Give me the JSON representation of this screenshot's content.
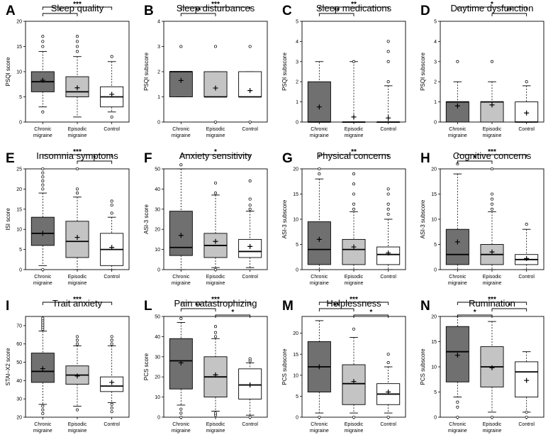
{
  "groups": [
    "Chronic\nmigraine",
    "Episodic\nmigraine",
    "Control"
  ],
  "colors": {
    "chronic": "#707070",
    "episodic": "#c4c4c4",
    "control": "#ffffff"
  },
  "chart_data": [
    {
      "type": "box",
      "letter": "A",
      "title": "Sleep quality",
      "ylabel": "PSQI score",
      "yticks": [
        0,
        5,
        10,
        15,
        20
      ],
      "ylim": [
        0,
        20
      ],
      "boxes": [
        {
          "whislo": 3,
          "q1": 6,
          "med": 8,
          "q3": 10,
          "whishi": 14,
          "mean": 8.3,
          "outliers": [
            2,
            15,
            16,
            17
          ]
        },
        {
          "whislo": 1,
          "q1": 5,
          "med": 6,
          "q3": 9,
          "whishi": 13,
          "mean": 6.8,
          "outliers": [
            14,
            15,
            16,
            17
          ]
        },
        {
          "whislo": 2,
          "q1": 3,
          "med": 5,
          "q3": 7,
          "whishi": 12,
          "mean": 5.5,
          "outliers": [
            1,
            13
          ]
        }
      ],
      "sig": [
        {
          "from": 0,
          "to": 1,
          "label": "*"
        },
        {
          "from": 0,
          "to": 2,
          "label": "***"
        }
      ]
    },
    {
      "type": "box",
      "letter": "B",
      "title": "Sleep disturbances",
      "ylabel": "PSQI subscore",
      "yticks": [
        0,
        1,
        2,
        3,
        4
      ],
      "ylim": [
        0,
        4
      ],
      "boxes": [
        {
          "whislo": 1,
          "q1": 1,
          "med": 2,
          "q3": 2,
          "whishi": 2,
          "mean": 1.65,
          "outliers": [
            3
          ]
        },
        {
          "whislo": 1,
          "q1": 1,
          "med": 1,
          "q3": 2,
          "whishi": 2,
          "mean": 1.35,
          "outliers": [
            0,
            3
          ]
        },
        {
          "whislo": 1,
          "q1": 1,
          "med": 1,
          "q3": 2,
          "whishi": 2,
          "mean": 1.25,
          "outliers": [
            0,
            3
          ]
        }
      ],
      "sig": [
        {
          "from": 0,
          "to": 1,
          "label": "**"
        },
        {
          "from": 0,
          "to": 2,
          "label": "***"
        }
      ]
    },
    {
      "type": "box",
      "letter": "C",
      "title": "Sleep medications",
      "ylabel": "PSQI subscore",
      "yticks": [
        0,
        1,
        2,
        3,
        4,
        5
      ],
      "ylim": [
        0,
        5
      ],
      "boxes": [
        {
          "whislo": 0,
          "q1": 0,
          "med": 0,
          "q3": 2,
          "whishi": 3,
          "mean": 0.75,
          "outliers": []
        },
        {
          "whislo": 0,
          "q1": 0,
          "med": 0,
          "q3": 0,
          "whishi": 3,
          "mean": 0.25,
          "outliers": [
            3
          ]
        },
        {
          "whislo": 0,
          "q1": 0,
          "med": 0,
          "q3": 0,
          "whishi": 1.8,
          "mean": 0.2,
          "outliers": [
            2,
            3,
            3.5,
            4
          ]
        }
      ],
      "sig": [
        {
          "from": 0,
          "to": 1,
          "label": "**"
        },
        {
          "from": 0,
          "to": 2,
          "label": "**"
        }
      ]
    },
    {
      "type": "box",
      "letter": "D",
      "title": "Daytime dysfunction",
      "ylabel": "PSQI subscore",
      "yticks": [
        0,
        1,
        2,
        3,
        4,
        5
      ],
      "ylim": [
        0,
        5
      ],
      "boxes": [
        {
          "whislo": 0,
          "q1": 0,
          "med": 1,
          "q3": 1,
          "whishi": 2,
          "mean": 0.8,
          "outliers": [
            3
          ]
        },
        {
          "whislo": 0,
          "q1": 0,
          "med": 1,
          "q3": 1,
          "whishi": 2,
          "mean": 0.85,
          "outliers": [
            3
          ]
        },
        {
          "whislo": 0,
          "q1": 0,
          "med": 0,
          "q3": 1,
          "whishi": 1.8,
          "mean": 0.45,
          "outliers": [
            2
          ]
        }
      ],
      "sig": [
        {
          "from": 1,
          "to": 2,
          "label": "**"
        },
        {
          "from": 0,
          "to": 2,
          "label": "*"
        }
      ]
    },
    {
      "type": "box",
      "letter": "E",
      "title": "Insomnia symptoms",
      "ylabel": "ISI score",
      "yticks": [
        0,
        5,
        10,
        15,
        20,
        25
      ],
      "ylim": [
        0,
        25
      ],
      "boxes": [
        {
          "whislo": 1,
          "q1": 6,
          "med": 9,
          "q3": 13,
          "whishi": 19,
          "mean": 9,
          "outliers": [
            0,
            20,
            21,
            22,
            23,
            24,
            25
          ]
        },
        {
          "whislo": 0,
          "q1": 3,
          "med": 7,
          "q3": 12,
          "whishi": 18,
          "mean": 8,
          "outliers": [
            19,
            20,
            25
          ]
        },
        {
          "whislo": 0,
          "q1": 1,
          "med": 5,
          "q3": 9,
          "whishi": 13,
          "mean": 5.5,
          "outliers": [
            14,
            16,
            17
          ]
        }
      ],
      "sig": [
        {
          "from": 1,
          "to": 2,
          "label": "*"
        },
        {
          "from": 0,
          "to": 2,
          "label": "***"
        }
      ]
    },
    {
      "type": "box",
      "letter": "F",
      "title": "Anxiety sensitivity",
      "ylabel": "ASI-3 score",
      "yticks": [
        0,
        10,
        20,
        30,
        40,
        50
      ],
      "ylim": [
        0,
        50
      ],
      "boxes": [
        {
          "whislo": 0,
          "q1": 7,
          "med": 11,
          "q3": 29,
          "whishi": 50,
          "mean": 17,
          "outliers": [
            52
          ]
        },
        {
          "whislo": 1,
          "q1": 6,
          "med": 12,
          "q3": 18,
          "whishi": 37,
          "mean": 14,
          "outliers": [
            0,
            38,
            43
          ]
        },
        {
          "whislo": 1,
          "q1": 6,
          "med": 9,
          "q3": 15,
          "whishi": 29,
          "mean": 11.5,
          "outliers": [
            30,
            32,
            35,
            44
          ]
        }
      ],
      "sig": [
        {
          "from": 0,
          "to": 2,
          "label": "*"
        }
      ]
    },
    {
      "type": "box",
      "letter": "G",
      "title": "Physical concerns",
      "ylabel": "ASI-3 subscore",
      "yticks": [
        0,
        5,
        10,
        15,
        20
      ],
      "ylim": [
        0,
        20
      ],
      "boxes": [
        {
          "whislo": 0,
          "q1": 1,
          "med": 4,
          "q3": 9.5,
          "whishi": 18,
          "mean": 6,
          "outliers": [
            19,
            20
          ]
        },
        {
          "whislo": 0,
          "q1": 1,
          "med": 4,
          "q3": 6,
          "whishi": 11.5,
          "mean": 4.5,
          "outliers": [
            12,
            13,
            15,
            17,
            19
          ]
        },
        {
          "whislo": 0,
          "q1": 1,
          "med": 3,
          "q3": 4.5,
          "whishi": 10,
          "mean": 3.3,
          "outliers": [
            11,
            12,
            13,
            15,
            16
          ]
        }
      ],
      "sig": [
        {
          "from": 0,
          "to": 2,
          "label": "**"
        }
      ]
    },
    {
      "type": "box",
      "letter": "H",
      "title": "Cognitive concerns",
      "ylabel": "ASI-3 subscore",
      "yticks": [
        0,
        5,
        10,
        15,
        20
      ],
      "ylim": [
        0,
        20
      ],
      "boxes": [
        {
          "whislo": 0,
          "q1": 1,
          "med": 3,
          "q3": 8,
          "whishi": 19,
          "mean": 5.5,
          "outliers": [
            21
          ]
        },
        {
          "whislo": 0,
          "q1": 1,
          "med": 3,
          "q3": 5,
          "whishi": 11.5,
          "mean": 3.5,
          "outliers": [
            12,
            13,
            14,
            15,
            20
          ]
        },
        {
          "whislo": 0,
          "q1": 1,
          "med": 2,
          "q3": 3,
          "whishi": 8,
          "mean": 2.2,
          "outliers": [
            9
          ]
        }
      ],
      "sig": [
        {
          "from": 0,
          "to": 1,
          "label": "*"
        },
        {
          "from": 0,
          "to": 2,
          "label": "***"
        }
      ]
    },
    {
      "type": "box",
      "letter": "I",
      "title": "Trait anxiety",
      "ylabel": "STAI–X2 score",
      "yticks": [
        20,
        30,
        40,
        50,
        60,
        70
      ],
      "ylim": [
        20,
        75
      ],
      "boxes": [
        {
          "whislo": 27,
          "q1": 39,
          "med": 45,
          "q3": 55,
          "whishi": 67,
          "mean": 46.5,
          "outliers": [
            22,
            24,
            26,
            68,
            69,
            70,
            71,
            72,
            73,
            74
          ]
        },
        {
          "whislo": 26,
          "q1": 38,
          "med": 43,
          "q3": 48,
          "whishi": 59,
          "mean": 42.5,
          "outliers": [
            24,
            60,
            62,
            64
          ]
        },
        {
          "whislo": 28,
          "q1": 34,
          "med": 37,
          "q3": 42,
          "whishi": 59,
          "mean": 39,
          "outliers": [
            23,
            25,
            27,
            60,
            62,
            64
          ]
        }
      ],
      "sig": [
        {
          "from": 0,
          "to": 2,
          "label": "***"
        }
      ]
    },
    {
      "type": "box",
      "letter": "L",
      "title": "Pain catastrophizing",
      "ylabel": "PCS score",
      "yticks": [
        0,
        10,
        20,
        30,
        40,
        50
      ],
      "ylim": [
        0,
        50
      ],
      "boxes": [
        {
          "whislo": 6,
          "q1": 14,
          "med": 28,
          "q3": 39,
          "whishi": 47,
          "mean": 27,
          "outliers": [
            0,
            2,
            4,
            49
          ]
        },
        {
          "whislo": 3,
          "q1": 10,
          "med": 20,
          "q3": 30,
          "whishi": 39,
          "mean": 21,
          "outliers": [
            1,
            2,
            40,
            42,
            45
          ]
        },
        {
          "whislo": 1,
          "q1": 9,
          "med": 16,
          "q3": 24,
          "whishi": 27,
          "mean": 16,
          "outliers": [
            0,
            28,
            29
          ]
        }
      ],
      "sig": [
        {
          "from": 1,
          "to": 2,
          "label": "*"
        },
        {
          "from": 0,
          "to": 1,
          "label": "**"
        },
        {
          "from": 0,
          "to": 2,
          "label": "***"
        }
      ]
    },
    {
      "type": "box",
      "letter": "M",
      "title": "Helplessness",
      "ylabel": "PCS subscore",
      "yticks": [
        0,
        5,
        10,
        15,
        20
      ],
      "ylim": [
        0,
        24
      ],
      "boxes": [
        {
          "whislo": 1,
          "q1": 6,
          "med": 12,
          "q3": 18,
          "whishi": 23,
          "mean": 12,
          "outliers": [
            0
          ]
        },
        {
          "whislo": 1,
          "q1": 3,
          "med": 8,
          "q3": 12.5,
          "whishi": 19,
          "mean": 8.5,
          "outliers": [
            0,
            21
          ]
        },
        {
          "whislo": 1,
          "q1": 3,
          "med": 5.5,
          "q3": 8,
          "whishi": 12,
          "mean": 6,
          "outliers": [
            0,
            13,
            15
          ]
        }
      ],
      "sig": [
        {
          "from": 1,
          "to": 2,
          "label": "*"
        },
        {
          "from": 0,
          "to": 1,
          "label": "**"
        },
        {
          "from": 0,
          "to": 2,
          "label": "***"
        }
      ]
    },
    {
      "type": "box",
      "letter": "N",
      "title": "Rumination",
      "ylabel": "PCS subscore",
      "yticks": [
        0,
        5,
        10,
        15,
        20
      ],
      "ylim": [
        0,
        20
      ],
      "boxes": [
        {
          "whislo": 4,
          "q1": 7,
          "med": 13,
          "q3": 18,
          "whishi": 20,
          "mean": 12.3,
          "outliers": [
            0,
            2,
            3
          ]
        },
        {
          "whislo": 1,
          "q1": 6,
          "med": 10,
          "q3": 14,
          "whishi": 19,
          "mean": 9.8,
          "outliers": [
            0
          ]
        },
        {
          "whislo": 1,
          "q1": 4,
          "med": 9,
          "q3": 11,
          "whishi": 13,
          "mean": 7.3,
          "outliers": [
            0,
            1
          ]
        }
      ],
      "sig": [
        {
          "from": 0,
          "to": 1,
          "label": "*"
        },
        {
          "from": 1,
          "to": 2,
          "label": "*"
        },
        {
          "from": 0,
          "to": 2,
          "label": "***"
        }
      ]
    }
  ]
}
